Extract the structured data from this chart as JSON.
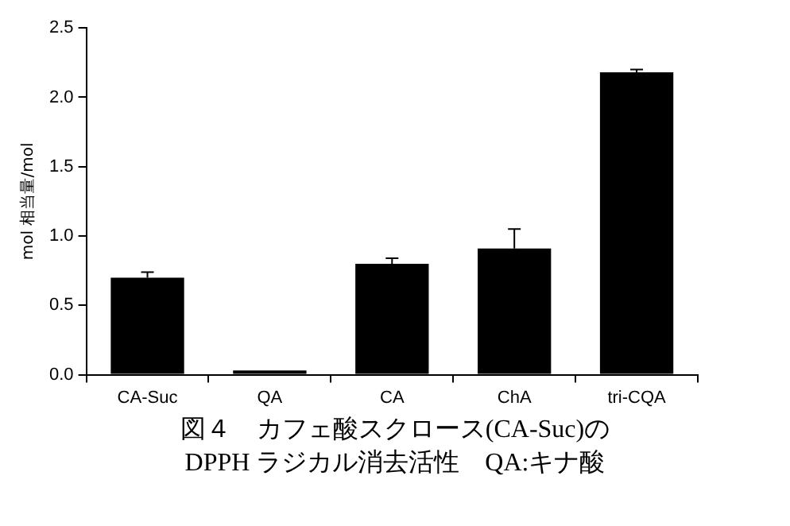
{
  "chart_data": {
    "type": "bar",
    "title": "図４　カフェ酸スクロース(CA-Suc)の",
    "subtitle": "DPPH ラジカル消去活性　QA:キナ酸",
    "ylabel": "mol 相当量/mol",
    "categories": [
      "CA-Suc",
      "QA",
      "CA",
      "ChA",
      "tri-CQA"
    ],
    "values": [
      0.7,
      0.03,
      0.8,
      0.91,
      2.18
    ],
    "errors": [
      [
        0.7,
        0.74
      ],
      null,
      [
        0.8,
        0.84
      ],
      [
        0.91,
        1.05
      ],
      [
        2.18,
        2.2
      ]
    ],
    "color": "#000000",
    "ylim": [
      0,
      2.5
    ],
    "yticks": [
      {
        "value": 0,
        "label": "0.0"
      },
      {
        "value": 0.5,
        "label": "0.5"
      },
      {
        "value": 1,
        "label": "1.0"
      },
      {
        "value": 1.5,
        "label": "1.5"
      },
      {
        "value": 2,
        "label": "2.0"
      },
      {
        "value": 2.5,
        "label": "2.5"
      }
    ],
    "grid": false,
    "legend": false
  }
}
